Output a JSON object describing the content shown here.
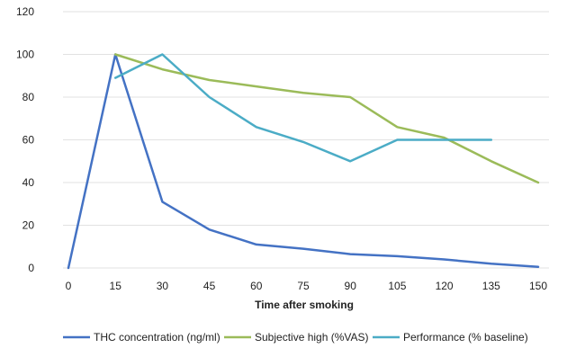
{
  "chart_data": {
    "type": "line",
    "title": "",
    "xlabel": "Time after smoking",
    "ylabel": "",
    "x": [
      0,
      15,
      30,
      45,
      60,
      75,
      90,
      105,
      120,
      135,
      150
    ],
    "x_ticks": [
      "0",
      "15",
      "30",
      "45",
      "60",
      "75",
      "90",
      "105",
      "120",
      "135",
      "150"
    ],
    "y_ticks": [
      "0",
      "20",
      "40",
      "60",
      "80",
      "100",
      "120"
    ],
    "ylim": [
      0,
      120
    ],
    "xlim": [
      0,
      150
    ],
    "grid": "horizontal",
    "legend_position": "bottom",
    "series": [
      {
        "name": "THC concentration (ng/ml)",
        "color": "#4472c4",
        "points": [
          [
            0,
            0
          ],
          [
            15,
            100
          ],
          [
            30,
            31
          ],
          [
            45,
            18
          ],
          [
            60,
            11
          ],
          [
            75,
            9
          ],
          [
            90,
            6.5
          ],
          [
            105,
            5.5
          ],
          [
            120,
            4
          ],
          [
            135,
            2
          ],
          [
            150,
            0.5
          ]
        ]
      },
      {
        "name": "Subjective high (%VAS)",
        "color": "#9bbb59",
        "points": [
          [
            15,
            100
          ],
          [
            30,
            93
          ],
          [
            45,
            88
          ],
          [
            60,
            85
          ],
          [
            75,
            82
          ],
          [
            90,
            80
          ],
          [
            105,
            66
          ],
          [
            120,
            61
          ],
          [
            135,
            50
          ],
          [
            150,
            40
          ]
        ]
      },
      {
        "name": "Performance (% baseline)",
        "color": "#4bacc6",
        "points": [
          [
            15,
            89
          ],
          [
            30,
            100
          ],
          [
            45,
            80
          ],
          [
            60,
            66
          ],
          [
            75,
            59
          ],
          [
            90,
            50
          ],
          [
            105,
            60
          ],
          [
            120,
            60
          ],
          [
            135,
            60
          ]
        ]
      }
    ]
  }
}
